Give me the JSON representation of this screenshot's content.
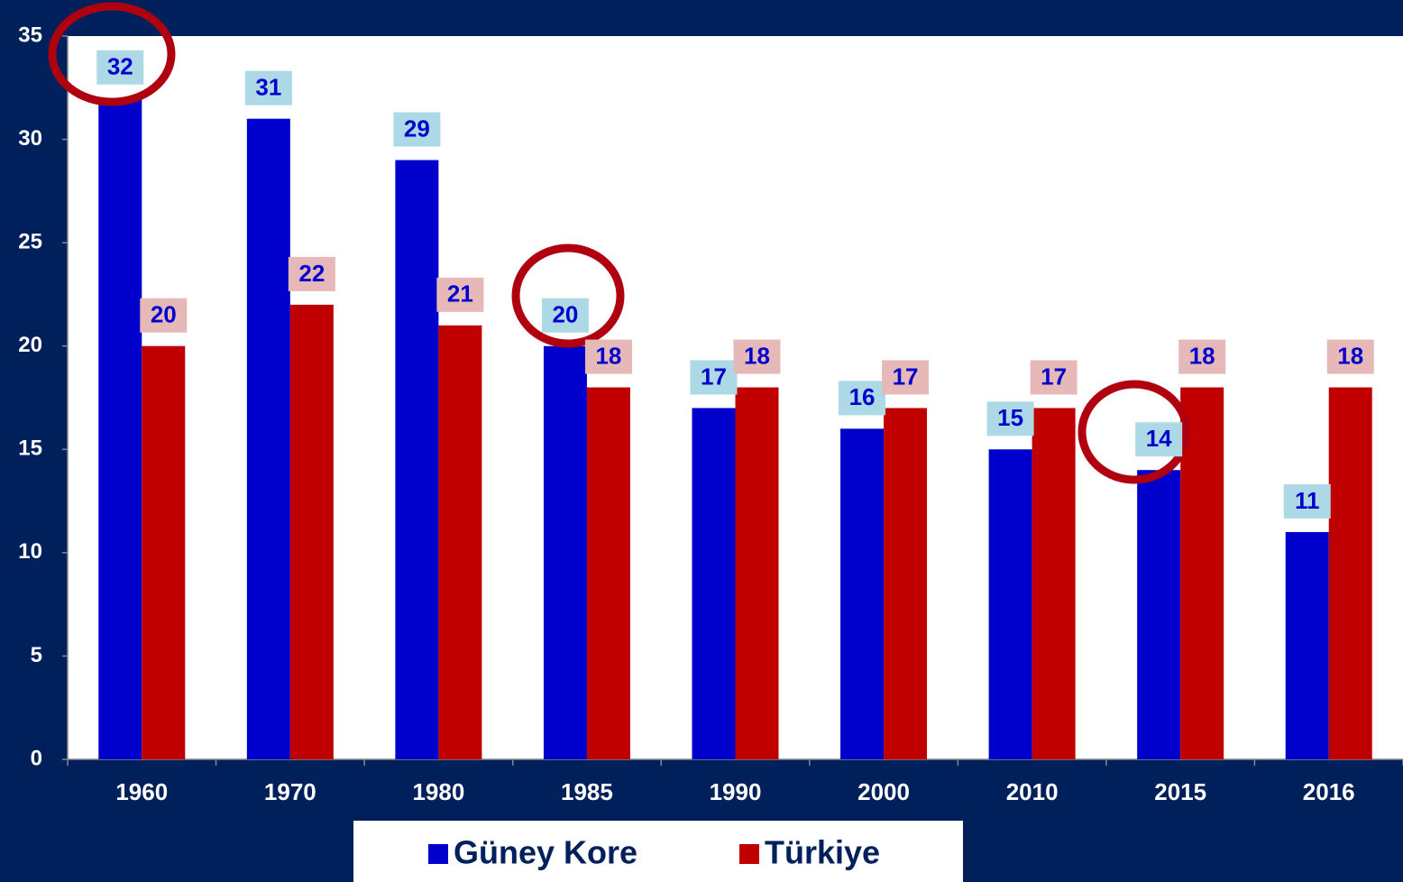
{
  "chart_data": {
    "type": "bar",
    "categories": [
      "1960",
      "1970",
      "1980",
      "1985",
      "1990",
      "2000",
      "2010",
      "2015",
      "2016"
    ],
    "series": [
      {
        "name": "Güney Kore",
        "color": "#0000cc",
        "label_bg": "#add8e6",
        "values": [
          32,
          31,
          29,
          20,
          17,
          16,
          15,
          14,
          11
        ]
      },
      {
        "name": "Türkiye",
        "color": "#c00000",
        "label_bg": "#e6b8b8",
        "values": [
          20,
          22,
          21,
          18,
          18,
          17,
          17,
          18,
          18
        ]
      }
    ],
    "ylim": [
      0,
      35
    ],
    "yticks": [
      0,
      5,
      10,
      15,
      20,
      25,
      30,
      35
    ],
    "grid": false,
    "legend": "bottom"
  }
}
